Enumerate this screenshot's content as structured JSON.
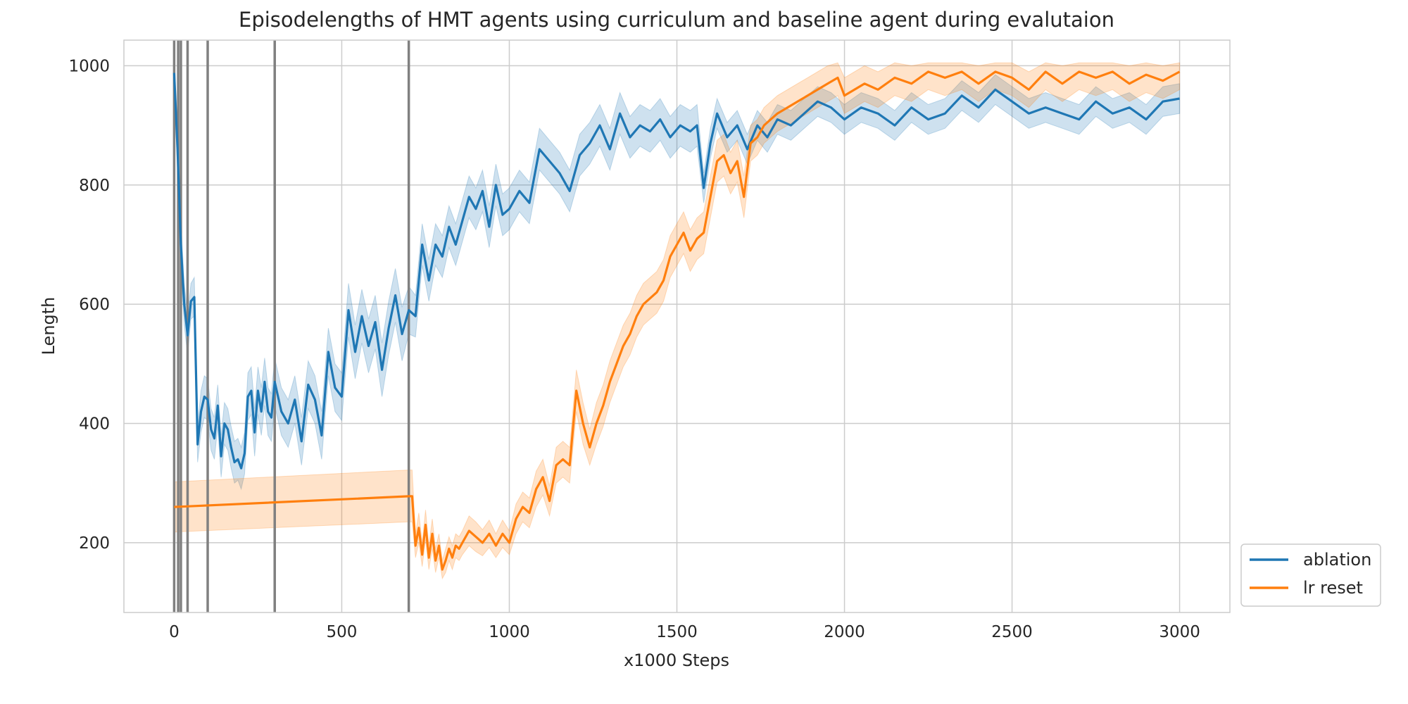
{
  "chart_data": {
    "type": "line",
    "title": "Episodelengths of HMT agents using curriculum and baseline agent during evalutaion",
    "xlabel": "x1000 Steps",
    "ylabel": "Length",
    "xlim": [
      -150,
      3150
    ],
    "ylim": [
      83,
      1043
    ],
    "xticks": [
      0,
      500,
      1000,
      1500,
      2000,
      2500,
      3000
    ],
    "yticks": [
      200,
      400,
      600,
      800,
      1000
    ],
    "grid": true,
    "legend_position": "lower-right-outside",
    "curriculum_markers": [
      0,
      12,
      20,
      40,
      100,
      300,
      700
    ],
    "colors": {
      "ablation": "#1f77b4",
      "lr_reset": "#ff7f0e",
      "marker": "#808080"
    },
    "series": [
      {
        "name": "ablation",
        "color": "#1f77b4",
        "x": [
          0,
          10,
          20,
          30,
          40,
          50,
          60,
          70,
          80,
          90,
          100,
          110,
          120,
          130,
          140,
          150,
          160,
          170,
          180,
          190,
          200,
          210,
          220,
          230,
          240,
          250,
          260,
          270,
          280,
          290,
          300,
          320,
          340,
          360,
          380,
          400,
          420,
          440,
          460,
          480,
          500,
          520,
          540,
          560,
          580,
          600,
          620,
          640,
          660,
          680,
          700,
          720,
          740,
          760,
          780,
          800,
          820,
          840,
          860,
          880,
          900,
          920,
          940,
          960,
          980,
          1000,
          1030,
          1060,
          1090,
          1120,
          1150,
          1180,
          1210,
          1240,
          1270,
          1300,
          1330,
          1360,
          1390,
          1420,
          1450,
          1480,
          1510,
          1540,
          1560,
          1580,
          1600,
          1620,
          1650,
          1680,
          1710,
          1740,
          1770,
          1800,
          1840,
          1880,
          1920,
          1960,
          2000,
          2050,
          2100,
          2150,
          2200,
          2250,
          2300,
          2350,
          2400,
          2450,
          2500,
          2550,
          2600,
          2650,
          2700,
          2750,
          2800,
          2850,
          2900,
          2950,
          3000
        ],
        "y": [
          988,
          860,
          700,
          600,
          548,
          605,
          612,
          365,
          420,
          445,
          440,
          390,
          375,
          430,
          345,
          400,
          390,
          360,
          335,
          340,
          325,
          350,
          445,
          455,
          385,
          455,
          420,
          470,
          420,
          410,
          470,
          420,
          400,
          440,
          370,
          465,
          440,
          380,
          520,
          460,
          445,
          590,
          520,
          580,
          530,
          570,
          490,
          560,
          615,
          550,
          590,
          580,
          700,
          640,
          700,
          680,
          730,
          700,
          740,
          780,
          760,
          790,
          730,
          800,
          750,
          760,
          790,
          770,
          860,
          840,
          820,
          790,
          850,
          870,
          900,
          860,
          920,
          880,
          900,
          890,
          910,
          880,
          900,
          890,
          900,
          795,
          870,
          920,
          880,
          900,
          860,
          900,
          880,
          910,
          900,
          920,
          940,
          930,
          910,
          930,
          920,
          900,
          930,
          910,
          920,
          950,
          930,
          960,
          940,
          920,
          930,
          920,
          910,
          940,
          920,
          930,
          910,
          940,
          945
        ],
        "lower": [
          975,
          820,
          660,
          565,
          515,
          575,
          580,
          335,
          385,
          410,
          405,
          355,
          340,
          395,
          310,
          365,
          355,
          325,
          300,
          305,
          290,
          315,
          405,
          415,
          345,
          415,
          380,
          430,
          380,
          370,
          430,
          380,
          360,
          400,
          330,
          425,
          400,
          340,
          480,
          420,
          405,
          545,
          475,
          535,
          485,
          525,
          445,
          515,
          570,
          505,
          550,
          545,
          665,
          605,
          665,
          645,
          695,
          665,
          705,
          745,
          725,
          755,
          695,
          765,
          715,
          725,
          755,
          735,
          825,
          805,
          785,
          755,
          815,
          835,
          865,
          825,
          885,
          845,
          865,
          855,
          875,
          845,
          865,
          855,
          865,
          770,
          845,
          895,
          855,
          875,
          835,
          875,
          855,
          885,
          875,
          895,
          915,
          905,
          885,
          905,
          895,
          875,
          905,
          885,
          895,
          925,
          905,
          935,
          915,
          895,
          905,
          895,
          885,
          915,
          895,
          905,
          885,
          915,
          920
        ],
        "upper": [
          995,
          900,
          740,
          635,
          580,
          635,
          645,
          395,
          455,
          480,
          475,
          425,
          410,
          465,
          380,
          435,
          425,
          395,
          370,
          375,
          360,
          385,
          485,
          495,
          425,
          495,
          460,
          510,
          460,
          450,
          510,
          460,
          440,
          480,
          410,
          505,
          480,
          420,
          560,
          500,
          485,
          635,
          565,
          625,
          575,
          615,
          535,
          605,
          660,
          595,
          630,
          615,
          735,
          675,
          735,
          715,
          765,
          735,
          775,
          815,
          795,
          825,
          765,
          835,
          785,
          795,
          825,
          805,
          895,
          875,
          855,
          825,
          885,
          905,
          935,
          895,
          955,
          915,
          935,
          925,
          945,
          915,
          935,
          925,
          935,
          820,
          895,
          945,
          905,
          925,
          885,
          925,
          905,
          935,
          925,
          945,
          965,
          955,
          935,
          955,
          945,
          925,
          955,
          935,
          945,
          975,
          955,
          985,
          965,
          945,
          955,
          945,
          935,
          965,
          945,
          955,
          935,
          965,
          970
        ]
      },
      {
        "name": "lr reset",
        "color": "#ff7f0e",
        "x": [
          0,
          700,
          710,
          720,
          730,
          740,
          750,
          760,
          770,
          780,
          790,
          800,
          810,
          820,
          830,
          840,
          850,
          860,
          880,
          900,
          920,
          940,
          960,
          980,
          1000,
          1020,
          1040,
          1060,
          1080,
          1100,
          1120,
          1140,
          1160,
          1180,
          1200,
          1220,
          1240,
          1260,
          1280,
          1300,
          1320,
          1340,
          1360,
          1380,
          1400,
          1420,
          1440,
          1460,
          1480,
          1500,
          1520,
          1540,
          1560,
          1580,
          1600,
          1620,
          1640,
          1660,
          1680,
          1700,
          1720,
          1740,
          1760,
          1780,
          1800,
          1830,
          1860,
          1890,
          1920,
          1950,
          1980,
          2000,
          2030,
          2060,
          2100,
          2150,
          2200,
          2250,
          2300,
          2350,
          2400,
          2450,
          2500,
          2550,
          2600,
          2650,
          2700,
          2750,
          2800,
          2850,
          2900,
          2950,
          3000
        ],
        "y": [
          260,
          278,
          278,
          195,
          225,
          180,
          230,
          175,
          215,
          170,
          195,
          155,
          170,
          190,
          175,
          195,
          190,
          200,
          220,
          210,
          200,
          215,
          195,
          215,
          200,
          240,
          260,
          250,
          290,
          310,
          270,
          330,
          340,
          330,
          455,
          400,
          360,
          400,
          430,
          470,
          500,
          530,
          550,
          580,
          600,
          610,
          620,
          640,
          680,
          700,
          720,
          690,
          710,
          720,
          780,
          840,
          850,
          820,
          840,
          780,
          870,
          880,
          900,
          910,
          920,
          930,
          940,
          950,
          960,
          970,
          980,
          950,
          960,
          970,
          960,
          980,
          970,
          990,
          980,
          990,
          970,
          990,
          980,
          960,
          990,
          970,
          990,
          980,
          990,
          970,
          985,
          975,
          990
        ],
        "lower": [
          218,
          235,
          235,
          175,
          200,
          160,
          205,
          155,
          190,
          150,
          175,
          140,
          150,
          170,
          155,
          175,
          170,
          180,
          195,
          185,
          178,
          192,
          175,
          192,
          180,
          215,
          235,
          225,
          260,
          280,
          245,
          300,
          310,
          300,
          420,
          365,
          330,
          365,
          395,
          435,
          465,
          495,
          515,
          545,
          565,
          575,
          585,
          605,
          645,
          665,
          685,
          655,
          675,
          685,
          745,
          805,
          815,
          785,
          805,
          745,
          840,
          850,
          870,
          880,
          890,
          900,
          910,
          920,
          930,
          940,
          950,
          920,
          930,
          940,
          930,
          950,
          940,
          960,
          950,
          960,
          940,
          960,
          950,
          930,
          960,
          940,
          960,
          950,
          960,
          940,
          955,
          945,
          960
        ],
        "upper": [
          302,
          322,
          322,
          215,
          250,
          200,
          255,
          195,
          240,
          190,
          215,
          170,
          190,
          210,
          195,
          215,
          210,
          220,
          245,
          235,
          222,
          238,
          215,
          238,
          220,
          265,
          285,
          275,
          320,
          340,
          295,
          360,
          370,
          360,
          490,
          435,
          390,
          435,
          465,
          505,
          535,
          565,
          585,
          615,
          635,
          645,
          655,
          675,
          715,
          735,
          755,
          725,
          745,
          755,
          815,
          875,
          885,
          855,
          875,
          815,
          900,
          910,
          930,
          940,
          950,
          960,
          970,
          980,
          990,
          1000,
          1005,
          980,
          990,
          1000,
          990,
          1005,
          1000,
          1005,
          1005,
          1005,
          1000,
          1005,
          1005,
          990,
          1005,
          1000,
          1005,
          1005,
          1005,
          1000,
          1005,
          1000,
          1005
        ]
      }
    ]
  }
}
